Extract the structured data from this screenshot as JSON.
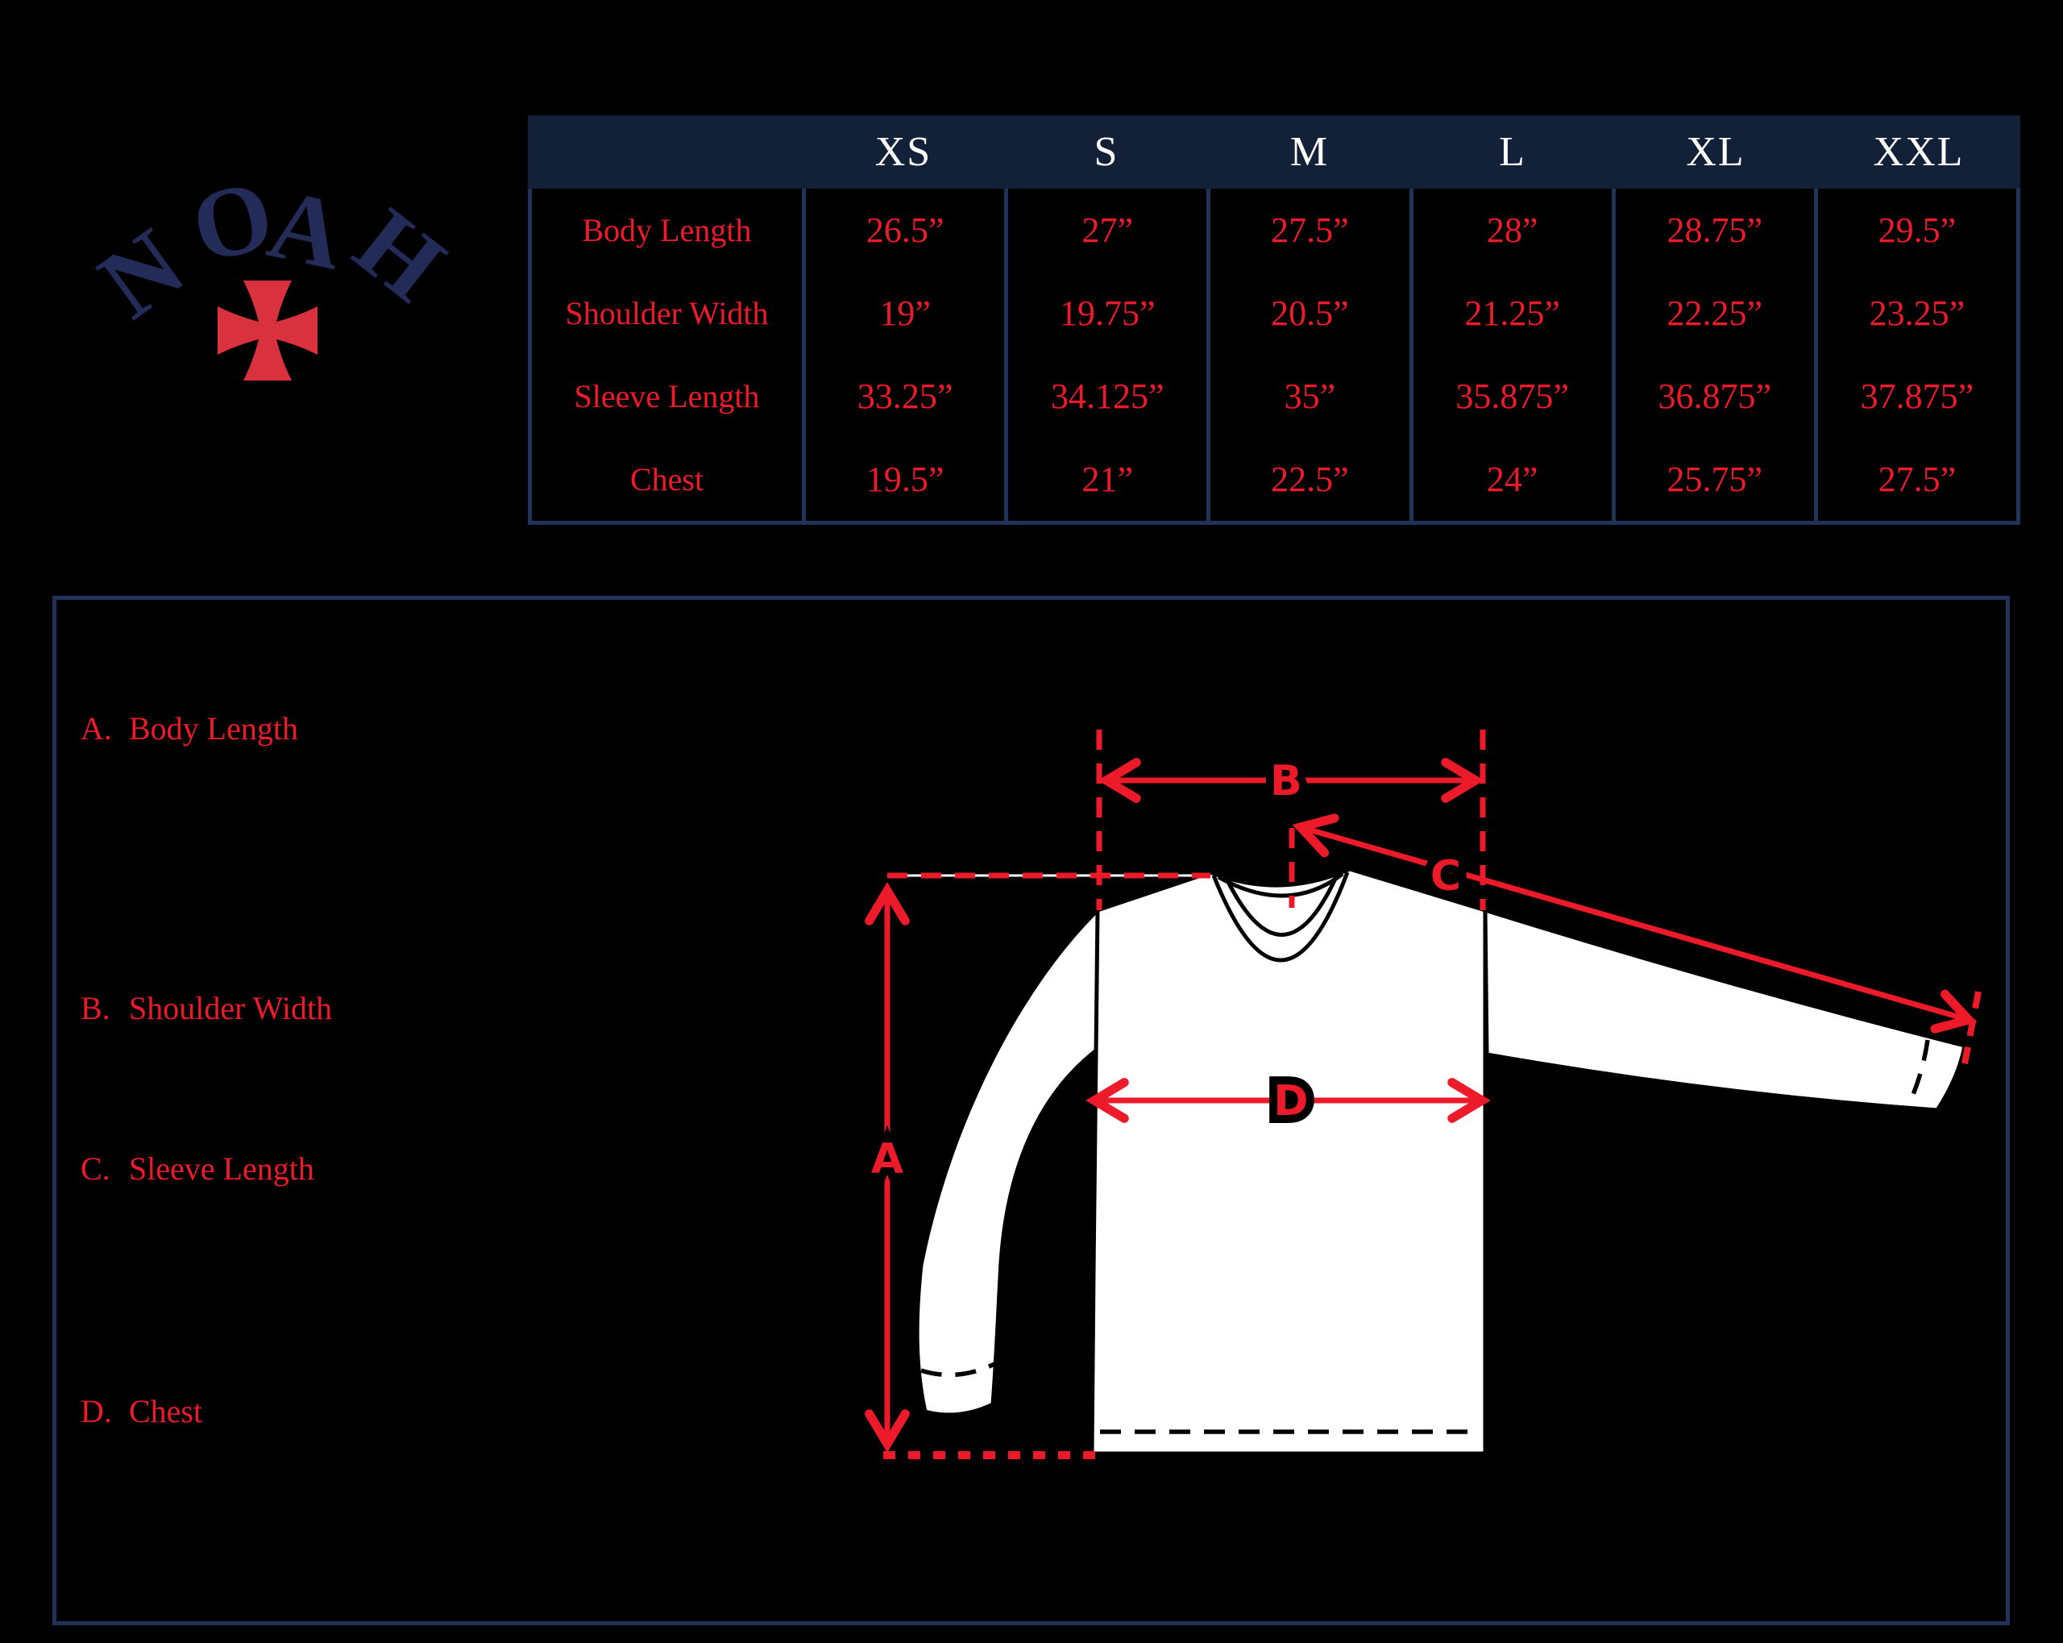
{
  "brand": {
    "name": "NOAH",
    "letters": [
      "N",
      "O",
      "A",
      "H"
    ]
  },
  "size_table": {
    "columns": [
      "XS",
      "S",
      "M",
      "L",
      "XL",
      "XXL"
    ],
    "rows": [
      {
        "label": "Body Length",
        "values": [
          "26.5”",
          "27”",
          "27.5”",
          "28”",
          "28.75”",
          "29.5”"
        ]
      },
      {
        "label": "Shoulder Width",
        "values": [
          "19”",
          "19.75”",
          "20.5”",
          "21.25”",
          "22.25”",
          "23.25”"
        ]
      },
      {
        "label": "Sleeve Length",
        "values": [
          "33.25”",
          "34.125”",
          "35”",
          "35.875”",
          "36.875”",
          "37.875”"
        ]
      },
      {
        "label": "Chest",
        "values": [
          "19.5”",
          "21”",
          "22.5”",
          "24”",
          "25.75”",
          "27.5”"
        ]
      }
    ]
  },
  "diagram": {
    "legend": [
      {
        "key": "A.",
        "label": "Body Length"
      },
      {
        "key": "B.",
        "label": "Shoulder Width"
      },
      {
        "key": "C.",
        "label": "Sleeve Length"
      },
      {
        "key": "D.",
        "label": "Chest"
      }
    ],
    "markers": {
      "a": "A",
      "b": "B",
      "c": "C",
      "d": "D"
    }
  },
  "colors": {
    "background": "#000000",
    "red": "#ed1b2a",
    "cross_red": "#d9323e",
    "navy_lines": "#1e3357",
    "header_navy": "#122138",
    "logo_navy": "#232c58",
    "shirt_white": "#ffffff"
  }
}
